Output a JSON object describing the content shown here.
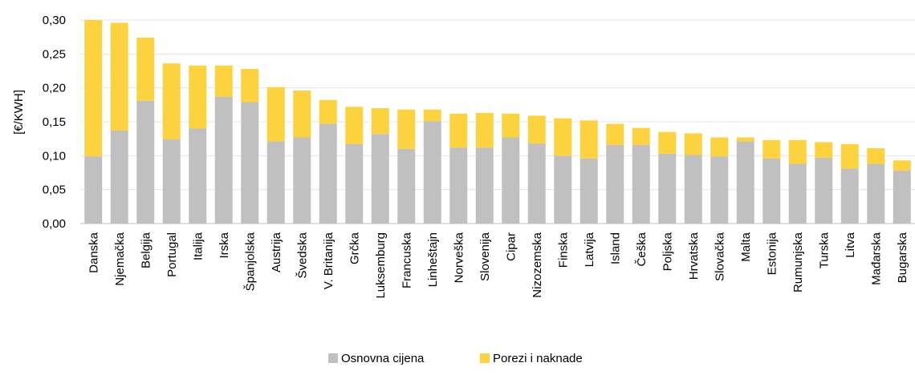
{
  "chart_data": {
    "type": "bar",
    "stacked": true,
    "ylabel": "[€/KWH]",
    "ylim": [
      0,
      0.3
    ],
    "yticks": [
      "0,00",
      "0,05",
      "0,10",
      "0,15",
      "0,20",
      "0,25",
      "0,30"
    ],
    "grid": true,
    "legend_position": "bottom",
    "categories": [
      "Danska",
      "Njemačka",
      "Belgija",
      "Portugal",
      "Italija",
      "Irska",
      "Španjolska",
      "Austrija",
      "Švedska",
      "V. Britanija",
      "Grčka",
      "Luksemburg",
      "Francuska",
      "Linheštajn",
      "Norveška",
      "Slovenija",
      "Cipar",
      "Nizozemska",
      "Finska",
      "Latvija",
      "Island",
      "Češka",
      "Poljska",
      "Hrvatska",
      "Slovačka",
      "Malta",
      "Estonija",
      "Rumunjska",
      "Turska",
      "Litva",
      "Mađarska",
      "Bugarska"
    ],
    "series": [
      {
        "name": "Osnovna cijena",
        "color": "#c0c0c0",
        "values": [
          0.099,
          0.137,
          0.181,
          0.124,
          0.14,
          0.187,
          0.179,
          0.121,
          0.127,
          0.147,
          0.117,
          0.132,
          0.11,
          0.151,
          0.112,
          0.112,
          0.127,
          0.118,
          0.1,
          0.096,
          0.116,
          0.116,
          0.103,
          0.101,
          0.099,
          0.121,
          0.096,
          0.088,
          0.097,
          0.081,
          0.088,
          0.078
        ]
      },
      {
        "name": "Porezi i naknade",
        "color": "#fcd23f",
        "values": [
          0.201,
          0.159,
          0.093,
          0.112,
          0.093,
          0.046,
          0.049,
          0.08,
          0.069,
          0.035,
          0.055,
          0.038,
          0.058,
          0.017,
          0.05,
          0.051,
          0.035,
          0.041,
          0.055,
          0.056,
          0.031,
          0.025,
          0.032,
          0.032,
          0.028,
          0.006,
          0.027,
          0.035,
          0.023,
          0.036,
          0.023,
          0.015
        ]
      }
    ]
  }
}
